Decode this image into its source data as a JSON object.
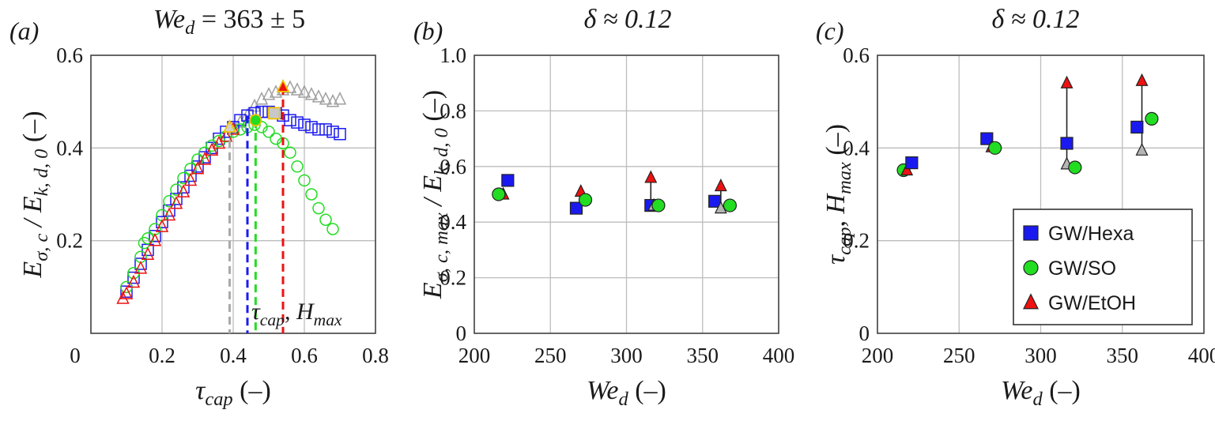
{
  "chart_data": [
    {
      "type": "scatter",
      "panel_label": "(a)",
      "title": {
        "lead": "We",
        "sub": "d",
        "rest": " = 363 ± 5"
      },
      "xlabel": {
        "lead": "τ",
        "sub": "cap",
        "rest": "  (–)"
      },
      "ylabel": {
        "lead": "E",
        "sub": "σ, c",
        "mid": " / E",
        "sub2": "k, d, 0",
        "rest": "  (–)"
      },
      "xlim": [
        0,
        0.8
      ],
      "ylim": [
        0,
        0.6
      ],
      "xticks": [
        "0",
        "0.2",
        "0.4",
        "0.6",
        "0.8"
      ],
      "yticks": [
        "",
        "0.2",
        "0.4",
        "0.6"
      ],
      "grid": true,
      "annotation": {
        "lead": "τ",
        "sub": "cap",
        "rest": ", ",
        "lead2": "H",
        "sub2": "max"
      },
      "series": [
        {
          "name": "GW/EtOH gray",
          "marker": "triangle",
          "color": "#a0a0a0",
          "fill": "none",
          "x": [
            0.42,
            0.44,
            0.46,
            0.48,
            0.5,
            0.52,
            0.54,
            0.56,
            0.58,
            0.6,
            0.62,
            0.64,
            0.66,
            0.68,
            0.7
          ],
          "y": [
            0.455,
            0.47,
            0.49,
            0.505,
            0.515,
            0.52,
            0.525,
            0.53,
            0.525,
            0.52,
            0.515,
            0.51,
            0.505,
            0.5,
            0.505
          ]
        },
        {
          "name": "GW/Hexa",
          "marker": "square",
          "color": "#1a1af0",
          "fill": "none",
          "x": [
            0.1,
            0.12,
            0.14,
            0.16,
            0.18,
            0.2,
            0.22,
            0.24,
            0.26,
            0.28,
            0.3,
            0.32,
            0.34,
            0.36,
            0.38,
            0.4,
            0.42,
            0.44,
            0.46,
            0.48,
            0.5,
            0.52,
            0.54,
            0.56,
            0.58,
            0.6,
            0.62,
            0.64,
            0.66,
            0.68,
            0.7
          ],
          "y": [
            0.09,
            0.12,
            0.15,
            0.18,
            0.21,
            0.24,
            0.265,
            0.29,
            0.315,
            0.34,
            0.36,
            0.38,
            0.4,
            0.42,
            0.435,
            0.445,
            0.46,
            0.47,
            0.475,
            0.478,
            0.478,
            0.475,
            0.47,
            0.46,
            0.455,
            0.45,
            0.445,
            0.44,
            0.44,
            0.435,
            0.43
          ]
        },
        {
          "name": "GW/SO",
          "marker": "circle",
          "color": "#22dd22",
          "fill": "none",
          "x": [
            0.1,
            0.12,
            0.14,
            0.15,
            0.16,
            0.18,
            0.2,
            0.22,
            0.24,
            0.26,
            0.28,
            0.3,
            0.32,
            0.34,
            0.36,
            0.38,
            0.4,
            0.42,
            0.44,
            0.46,
            0.48,
            0.5,
            0.52,
            0.54,
            0.56,
            0.58,
            0.6,
            0.62,
            0.64,
            0.66,
            0.68
          ],
          "y": [
            0.1,
            0.13,
            0.165,
            0.195,
            0.205,
            0.225,
            0.255,
            0.285,
            0.31,
            0.335,
            0.355,
            0.375,
            0.39,
            0.405,
            0.415,
            0.425,
            0.435,
            0.44,
            0.445,
            0.45,
            0.445,
            0.435,
            0.42,
            0.41,
            0.39,
            0.36,
            0.33,
            0.3,
            0.27,
            0.245,
            0.225
          ]
        },
        {
          "name": "GW/EtOH",
          "marker": "triangle",
          "color": "#ee1111",
          "fill": "none",
          "x": [
            0.09,
            0.1,
            0.12,
            0.14,
            0.16,
            0.18,
            0.2,
            0.22,
            0.24,
            0.26,
            0.28,
            0.3,
            0.32,
            0.34,
            0.36,
            0.38,
            0.4
          ],
          "y": [
            0.075,
            0.085,
            0.11,
            0.14,
            0.17,
            0.2,
            0.23,
            0.255,
            0.28,
            0.305,
            0.33,
            0.355,
            0.375,
            0.395,
            0.41,
            0.425,
            0.44
          ]
        }
      ],
      "highlights": [
        {
          "marker": "triangle",
          "fill": "#d0d0d0",
          "stroke": "#f0c000",
          "x": 0.39,
          "y": 0.445
        },
        {
          "marker": "square",
          "fill": "#c8c8c8",
          "stroke": "#f0c000",
          "x": 0.515,
          "y": 0.475
        },
        {
          "marker": "circle",
          "fill": "#22dd22",
          "stroke": "#f0c000",
          "x": 0.463,
          "y": 0.46
        },
        {
          "marker": "triangle",
          "fill": "#ee1111",
          "stroke": "#f0c000",
          "x": 0.54,
          "y": 0.532
        }
      ],
      "vlines": [
        {
          "x": 0.39,
          "y": 0.445,
          "color": "#aaaaaa"
        },
        {
          "x": 0.44,
          "y": 0.47,
          "color": "#1a1af0"
        },
        {
          "x": 0.463,
          "y": 0.46,
          "color": "#22dd22"
        },
        {
          "x": 0.54,
          "y": 0.532,
          "color": "#ee1111"
        }
      ]
    },
    {
      "type": "scatter",
      "panel_label": "(b)",
      "title": {
        "lead": "δ ≈ 0.12"
      },
      "xlabel": {
        "lead": "We",
        "sub": "d",
        "rest": "  (–)"
      },
      "ylabel": {
        "lead": "E",
        "sub": "σ, c, max",
        "mid": " / E",
        "sub2": "k, d, 0",
        "rest": "  (–)"
      },
      "xlim": [
        200,
        400
      ],
      "ylim": [
        0,
        1.0
      ],
      "xticks": [
        "200",
        "250",
        "300",
        "350",
        "400"
      ],
      "yticks": [
        "0",
        "0.2",
        "0.4",
        "0.6",
        "0.8",
        "1.0"
      ],
      "grid": true,
      "errorbars": [
        {
          "x": 316,
          "y1": 0.46,
          "y2": 0.56
        },
        {
          "x": 362,
          "y1": 0.45,
          "y2": 0.53
        }
      ],
      "points": [
        {
          "series": "GW/EtOH",
          "marker": "triangle",
          "color": "#ee1111",
          "x": 219,
          "y": 0.5
        },
        {
          "series": "GW/SO",
          "marker": "circle",
          "color": "#22dd22",
          "x": 216,
          "y": 0.5
        },
        {
          "series": "GW/Hexa",
          "marker": "square",
          "color": "#1a1af0",
          "x": 222,
          "y": 0.55
        },
        {
          "series": "GW/Hexa",
          "marker": "square",
          "color": "#1a1af0",
          "x": 267,
          "y": 0.45
        },
        {
          "series": "GW/EtOH",
          "marker": "triangle",
          "color": "#ee1111",
          "x": 270,
          "y": 0.51
        },
        {
          "series": "GW/SO",
          "marker": "circle",
          "color": "#22dd22",
          "x": 273,
          "y": 0.48
        },
        {
          "series": "GW/Hexa",
          "marker": "square",
          "color": "#1a1af0",
          "x": 316,
          "y": 0.46
        },
        {
          "series": "GW/EtOH",
          "marker": "triangle",
          "color": "#ee1111",
          "x": 316,
          "y": 0.56
        },
        {
          "series": "GW/EtOH gray",
          "marker": "triangle",
          "color": "#b4b4b4",
          "x": 318,
          "y": 0.46
        },
        {
          "series": "GW/SO",
          "marker": "circle",
          "color": "#22dd22",
          "x": 321,
          "y": 0.46
        },
        {
          "series": "GW/Hexa",
          "marker": "square",
          "color": "#1a1af0",
          "x": 358,
          "y": 0.475
        },
        {
          "series": "GW/EtOH",
          "marker": "triangle",
          "color": "#ee1111",
          "x": 362,
          "y": 0.53
        },
        {
          "series": "GW/EtOH gray",
          "marker": "triangle",
          "color": "#b4b4b4",
          "x": 362,
          "y": 0.45
        },
        {
          "series": "GW/SO",
          "marker": "circle",
          "color": "#22dd22",
          "x": 368,
          "y": 0.46
        }
      ]
    },
    {
      "type": "scatter",
      "panel_label": "(c)",
      "title": {
        "lead": "δ ≈ 0.12"
      },
      "xlabel": {
        "lead": "We",
        "sub": "d",
        "rest": "  (–)"
      },
      "ylabel": {
        "lead": "τ",
        "sub": "cap",
        "rest": ", ",
        "lead2": "H",
        "sub2": "max",
        "rest2": "  (–)"
      },
      "xlim": [
        200,
        400
      ],
      "ylim": [
        0,
        0.6
      ],
      "xticks": [
        "200",
        "250",
        "300",
        "350",
        "400"
      ],
      "yticks": [
        "0",
        "0.2",
        "0.4",
        "0.6"
      ],
      "grid": true,
      "legend": {
        "position": "bottom-right",
        "entries": [
          "GW/Hexa",
          "GW/SO",
          "GW/EtOH"
        ]
      },
      "errorbars": [
        {
          "x": 316,
          "y1": 0.365,
          "y2": 0.54
        },
        {
          "x": 362,
          "y1": 0.395,
          "y2": 0.545
        }
      ],
      "points": [
        {
          "series": "GW/SO",
          "marker": "circle",
          "color": "#22dd22",
          "x": 216,
          "y": 0.352
        },
        {
          "series": "GW/EtOH",
          "marker": "triangle",
          "color": "#ee1111",
          "x": 218,
          "y": 0.352
        },
        {
          "series": "GW/Hexa",
          "marker": "square",
          "color": "#1a1af0",
          "x": 221,
          "y": 0.368
        },
        {
          "series": "GW/Hexa",
          "marker": "square",
          "color": "#1a1af0",
          "x": 267,
          "y": 0.42
        },
        {
          "series": "GW/EtOH",
          "marker": "triangle",
          "color": "#ee1111",
          "x": 270,
          "y": 0.402
        },
        {
          "series": "GW/SO",
          "marker": "circle",
          "color": "#22dd22",
          "x": 272,
          "y": 0.4
        },
        {
          "series": "GW/EtOH",
          "marker": "triangle",
          "color": "#ee1111",
          "x": 316,
          "y": 0.54
        },
        {
          "series": "GW/Hexa",
          "marker": "square",
          "color": "#1a1af0",
          "x": 316,
          "y": 0.41
        },
        {
          "series": "GW/EtOH gray",
          "marker": "triangle",
          "color": "#b4b4b4",
          "x": 316,
          "y": 0.365
        },
        {
          "series": "GW/SO",
          "marker": "circle",
          "color": "#22dd22",
          "x": 321,
          "y": 0.358
        },
        {
          "series": "GW/EtOH",
          "marker": "triangle",
          "color": "#ee1111",
          "x": 362,
          "y": 0.545
        },
        {
          "series": "GW/Hexa",
          "marker": "square",
          "color": "#1a1af0",
          "x": 359,
          "y": 0.445
        },
        {
          "series": "GW/EtOH gray",
          "marker": "triangle",
          "color": "#b4b4b4",
          "x": 362,
          "y": 0.395
        },
        {
          "series": "GW/SO",
          "marker": "circle",
          "color": "#22dd22",
          "x": 368,
          "y": 0.463
        }
      ]
    }
  ],
  "colors": {
    "hexa": "#1a1af0",
    "so": "#22dd22",
    "etoh": "#ee1111",
    "gray": "#a0a0a0",
    "highlight_edge": "#f0c000"
  }
}
